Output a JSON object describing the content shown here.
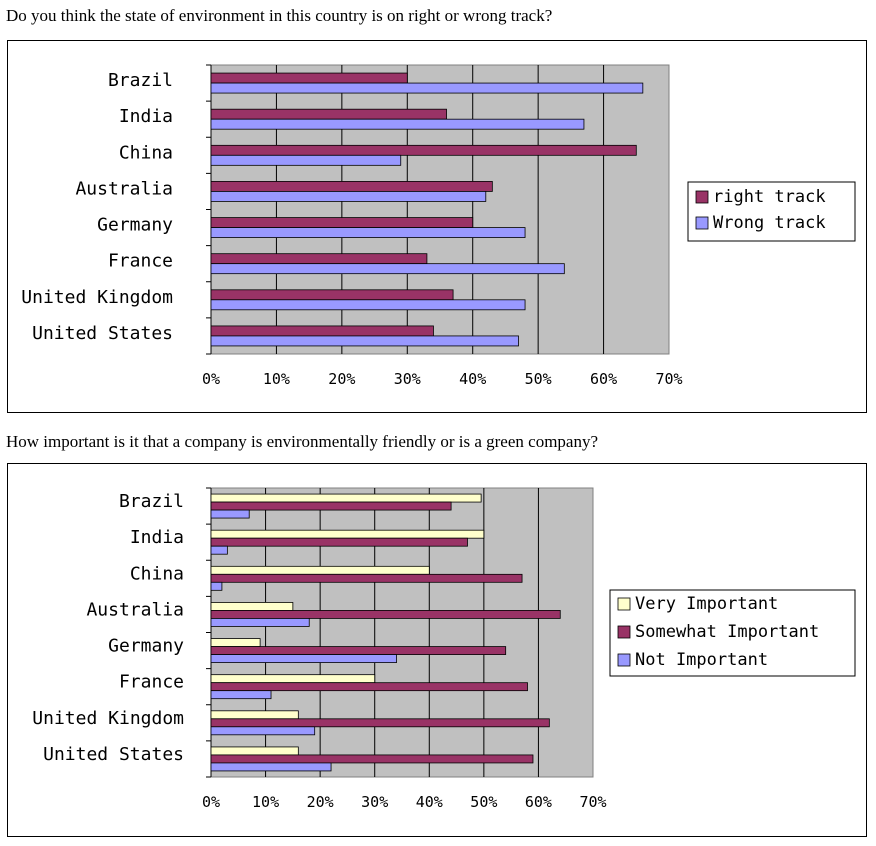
{
  "questions": [
    "Do you think the state of environment in this country is on right or wrong track?",
    "How important is it that a company is environmentally friendly or is a green company?"
  ],
  "colors": {
    "plot_bg": "#c0c0c0",
    "right_track": "#993366",
    "wrong_track": "#9999ff",
    "very_important": "#ffffcc",
    "somewhat_important": "#993366",
    "not_important": "#9999ff"
  },
  "chart_data": [
    {
      "type": "bar",
      "orientation": "horizontal",
      "title": "",
      "categories": [
        "Brazil",
        "India",
        "China",
        "Australia",
        "Germany",
        "France",
        "United Kingdom",
        "United States"
      ],
      "series": [
        {
          "name": "right track",
          "values": [
            30,
            36,
            65,
            43,
            40,
            33,
            37,
            34
          ]
        },
        {
          "name": "Wrong track",
          "values": [
            66,
            57,
            29,
            42,
            48,
            54,
            48,
            47
          ]
        }
      ],
      "xlim": [
        0,
        70
      ],
      "xticks": [
        "0%",
        "10%",
        "20%",
        "30%",
        "40%",
        "50%",
        "60%",
        "70%"
      ],
      "grid": true,
      "legend": "right"
    },
    {
      "type": "bar",
      "orientation": "horizontal",
      "title": "",
      "categories": [
        "Brazil",
        "India",
        "China",
        "Australia",
        "Germany",
        "France",
        "United Kingdom",
        "United States"
      ],
      "series": [
        {
          "name": "Very Important",
          "values": [
            49.5,
            50,
            40,
            15,
            9,
            30,
            16,
            16
          ]
        },
        {
          "name": "Somewhat Important",
          "values": [
            44,
            47,
            57,
            64,
            54,
            58,
            62,
            59
          ]
        },
        {
          "name": "Not Important",
          "values": [
            7,
            3,
            2,
            18,
            34,
            11,
            19,
            22
          ]
        }
      ],
      "xlim": [
        0,
        70
      ],
      "xticks": [
        "0%",
        "10%",
        "20%",
        "30%",
        "40%",
        "50%",
        "60%",
        "70%"
      ],
      "grid": true,
      "legend": "right"
    }
  ]
}
